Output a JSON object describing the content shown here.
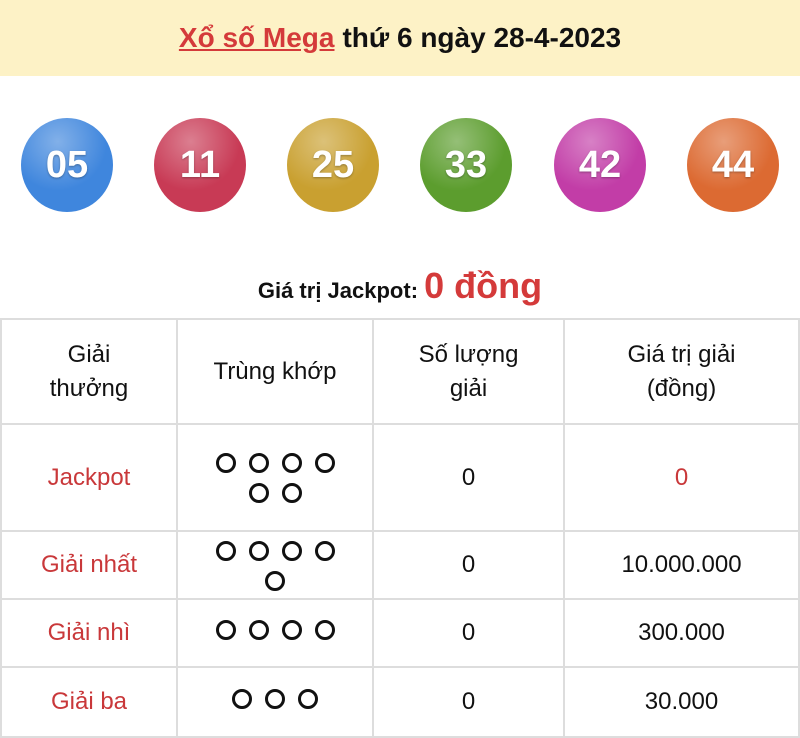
{
  "header": {
    "link": "Xổ số Mega",
    "rest": "thứ 6 ngày 28-4-2023"
  },
  "balls": [
    {
      "n": "05",
      "color": "#3f86dd"
    },
    {
      "n": "11",
      "color": "#c83a55"
    },
    {
      "n": "25",
      "color": "#c9a030"
    },
    {
      "n": "33",
      "color": "#5c9d2e"
    },
    {
      "n": "42",
      "color": "#c23da7"
    },
    {
      "n": "44",
      "color": "#dc6a32"
    }
  ],
  "jackpot": {
    "label": "Giá trị Jackpot:",
    "value": "0 đồng"
  },
  "table": {
    "headers": [
      "Giải\nthưởng",
      "Trùng khớp",
      "Số lượng\ngiải",
      "Giá trị giải\n(đồng)"
    ],
    "rows": [
      {
        "prize": "Jackpot",
        "matches": 6,
        "count": "0",
        "value": "0",
        "value_red": true
      },
      {
        "prize": "Giải nhất",
        "matches": 5,
        "count": "0",
        "value": "10.000.000"
      },
      {
        "prize": "Giải nhì",
        "matches": 4,
        "count": "0",
        "value": "300.000"
      },
      {
        "prize": "Giải ba",
        "matches": 3,
        "count": "0",
        "value": "30.000"
      }
    ]
  }
}
